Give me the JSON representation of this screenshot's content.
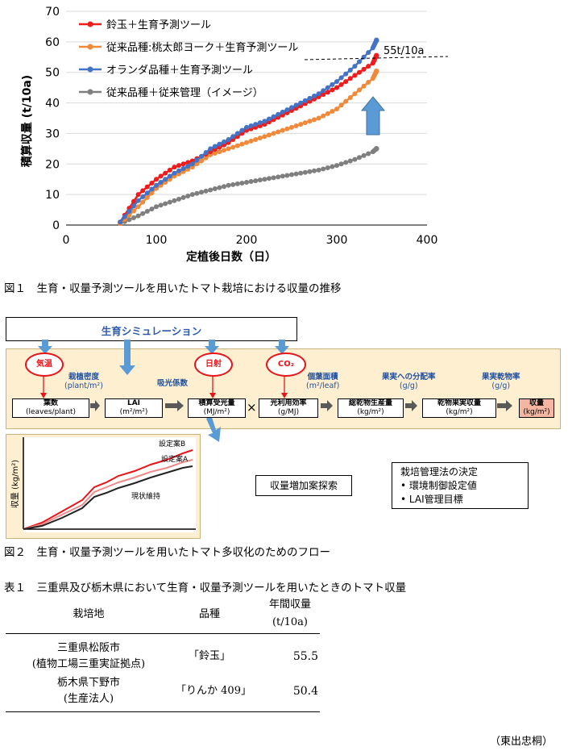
{
  "figure1": {
    "caption": "図１　生育・収量予測ツールを用いたトマト栽培における収量の推移",
    "ylabel": "積算収量 (t/10a)",
    "xlabel": "定植後日数（日）",
    "annotation": "55t/10a",
    "colors": {
      "red": "#ee1c1c",
      "orange": "#f08a3a",
      "blue": "#4472c4",
      "gray": "#7f7f7f",
      "arrow": "#5b9bd5"
    }
  },
  "chart_data": {
    "type": "line",
    "xlabel": "定植後日数（日）",
    "ylabel": "積算収量 (t/10a)",
    "xlim": [
      0,
      400
    ],
    "ylim": [
      0,
      70
    ],
    "xticks": [
      "0",
      "100",
      "200",
      "300",
      "400"
    ],
    "yticks": [
      "0",
      "10",
      "20",
      "30",
      "40",
      "50",
      "60",
      "70"
    ],
    "grid": "horizontal",
    "legend": "top-left",
    "series": [
      {
        "name": "鈴玉＋生育予測ツール",
        "color": "#ee1c1c",
        "x": [
          60,
          80,
          100,
          120,
          140,
          160,
          180,
          200,
          220,
          240,
          260,
          280,
          300,
          320,
          340,
          344
        ],
        "y": [
          1,
          10,
          15,
          19,
          21,
          24,
          27,
          31,
          33,
          36,
          39,
          42,
          45,
          49,
          53,
          55.5
        ]
      },
      {
        "name": "従来品種:桃太郎ヨーク＋生育予測ツール",
        "color": "#f08a3a",
        "x": [
          60,
          80,
          100,
          120,
          140,
          160,
          180,
          200,
          220,
          240,
          260,
          280,
          300,
          320,
          340,
          344
        ],
        "y": [
          0.5,
          6,
          12,
          16,
          19,
          23,
          25,
          27,
          29,
          31,
          33,
          35,
          38,
          43,
          48,
          50.4
        ]
      },
      {
        "name": "オランダ品種＋生育予測ツール",
        "color": "#4472c4",
        "x": [
          60,
          80,
          100,
          120,
          140,
          160,
          180,
          200,
          220,
          240,
          260,
          280,
          300,
          320,
          340,
          344
        ],
        "y": [
          1,
          8,
          13,
          17,
          20,
          25,
          28,
          32,
          34,
          37,
          40,
          43,
          47,
          52,
          58,
          60.5
        ]
      },
      {
        "name": "従来品種＋従来管理（イメージ）",
        "color": "#7f7f7f",
        "x": [
          60,
          80,
          100,
          120,
          140,
          160,
          180,
          200,
          220,
          240,
          260,
          280,
          300,
          320,
          340,
          344
        ],
        "y": [
          0.5,
          3,
          6,
          8,
          10,
          11.5,
          13,
          14,
          15,
          16,
          17,
          18,
          19.5,
          21.5,
          24,
          25
        ]
      }
    ],
    "reference_line": {
      "y": 55,
      "label": "55t/10a"
    }
  },
  "figure2": {
    "caption": "図２　生育・収量予測ツールを用いたトマト多収化のためのフロー",
    "sim_title": "生育シミュレーション",
    "ovals": [
      "気温",
      "日射",
      "CO₂"
    ],
    "blue_labels": {
      "density": "栽植密度",
      "density_unit": "(plant/m²)",
      "extinction": "吸光係数",
      "leaf_area": "個葉面積",
      "leaf_area_unit": "(m²/leaf)",
      "partition": "果実への分配率",
      "partition_unit": "(g/g)",
      "dry_ratio": "果実乾物率",
      "dry_ratio_unit": "(g/g)"
    },
    "boxes": [
      {
        "title": "葉数",
        "unit": "(leaves/plant)"
      },
      {
        "title": "LAI",
        "unit": "(m²/m²)"
      },
      {
        "title": "積算受光量",
        "unit": "(MJ/m²)"
      },
      {
        "title": "光利用効率",
        "unit": "(g/MJ)"
      },
      {
        "title": "総乾物生産量",
        "unit": "(kg/m²)"
      },
      {
        "title": "乾物果実収量",
        "unit": "(kg/m²)"
      },
      {
        "title": "収量",
        "unit": "(kg/m²)"
      }
    ],
    "times": "×",
    "mini_chart": {
      "ylabel": "収量 (kg/m²)",
      "labels": [
        "設定案B",
        "設定案A",
        "現状維持"
      ]
    },
    "search_box": "収量増加案探索",
    "decision": {
      "title": "栽培管理法の決定",
      "items": [
        "環境制御設定値",
        "LAI管理目標"
      ]
    }
  },
  "table1": {
    "caption": "表１　三重県及び栃木県において生育・収量予測ツールを用いたときのトマト収量",
    "headers": {
      "site": "栽培地",
      "variety": "品種",
      "yield": "年間収量",
      "yield_unit": "(t/10a)"
    },
    "rows": [
      {
        "site1": "三重県松阪市",
        "site2": "(植物工場三重実証拠点)",
        "variety": "「鈴玉」",
        "yield": "55.5"
      },
      {
        "site1": "栃木県下野市",
        "site2": "(生産法人)",
        "variety": "「りんか 409」",
        "yield": "50.4"
      }
    ]
  },
  "author": "（東出忠桐）"
}
